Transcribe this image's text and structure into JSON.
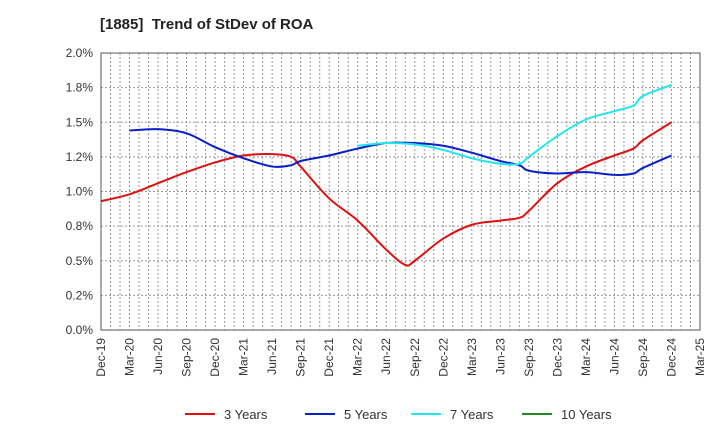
{
  "chart_data": {
    "type": "line",
    "title": "[1885]  Trend of StDev of ROA",
    "xlabel": "",
    "ylabel": "",
    "x_ticks": [
      "Dec-19",
      "Mar-20",
      "Jun-20",
      "Sep-20",
      "Dec-20",
      "Mar-21",
      "Jun-21",
      "Sep-21",
      "Dec-21",
      "Mar-22",
      "Jun-22",
      "Sep-22",
      "Dec-22",
      "Mar-23",
      "Jun-23",
      "Sep-23",
      "Dec-23",
      "Mar-24",
      "Jun-24",
      "Sep-24",
      "Dec-24",
      "Mar-25"
    ],
    "y_ticks": [
      "0.0%",
      "0.2%",
      "0.5%",
      "0.8%",
      "1.0%",
      "1.2%",
      "1.5%",
      "1.8%",
      "2.0%"
    ],
    "ylim": [
      0,
      2.0
    ],
    "grid": true,
    "legend_position": "bottom",
    "series": [
      {
        "name": "3 Years",
        "color": "#dd1111",
        "x": [
          "Dec-19",
          "Mar-20",
          "Jun-20",
          "Sep-20",
          "Dec-20",
          "Mar-21",
          "Jun-21",
          "Aug-21",
          "Sep-21",
          "Dec-21",
          "Mar-22",
          "Jun-22",
          "Aug-22",
          "Sep-22",
          "Dec-22",
          "Mar-23",
          "Jun-23",
          "Aug-23",
          "Sep-23",
          "Dec-23",
          "Mar-24",
          "Jun-24",
          "Aug-24",
          "Sep-24",
          "Dec-24"
        ],
        "values": [
          0.93,
          0.98,
          1.06,
          1.14,
          1.21,
          1.26,
          1.27,
          1.25,
          1.18,
          0.95,
          0.79,
          0.58,
          0.47,
          0.5,
          0.66,
          0.76,
          0.79,
          0.81,
          0.86,
          1.06,
          1.18,
          1.26,
          1.31,
          1.37,
          1.5
        ]
      },
      {
        "name": "5 Years",
        "color": "#0b1fc7",
        "x": [
          "Mar-20",
          "Jun-20",
          "Sep-20",
          "Dec-20",
          "Mar-21",
          "Jun-21",
          "Aug-21",
          "Sep-21",
          "Dec-21",
          "Mar-22",
          "Jun-22",
          "Sep-22",
          "Dec-22",
          "Mar-23",
          "Jun-23",
          "Aug-23",
          "Sep-23",
          "Dec-23",
          "Mar-24",
          "Jun-24",
          "Aug-24",
          "Sep-24",
          "Dec-24"
        ],
        "values": [
          1.44,
          1.45,
          1.42,
          1.32,
          1.24,
          1.18,
          1.19,
          1.22,
          1.26,
          1.31,
          1.35,
          1.35,
          1.33,
          1.28,
          1.22,
          1.19,
          1.15,
          1.13,
          1.14,
          1.12,
          1.13,
          1.17,
          1.26
        ]
      },
      {
        "name": "7 Years",
        "color": "#22e6ee",
        "x": [
          "Mar-22",
          "Jun-22",
          "Sep-22",
          "Dec-22",
          "Mar-23",
          "Jun-23",
          "Aug-23",
          "Sep-23",
          "Dec-23",
          "Mar-24",
          "Jun-24",
          "Aug-24",
          "Sep-24",
          "Dec-24"
        ],
        "values": [
          1.33,
          1.35,
          1.34,
          1.3,
          1.24,
          1.2,
          1.2,
          1.25,
          1.4,
          1.52,
          1.58,
          1.62,
          1.69,
          1.77
        ]
      },
      {
        "name": "10 Years",
        "color": "#228b22",
        "x": [],
        "values": []
      }
    ]
  }
}
